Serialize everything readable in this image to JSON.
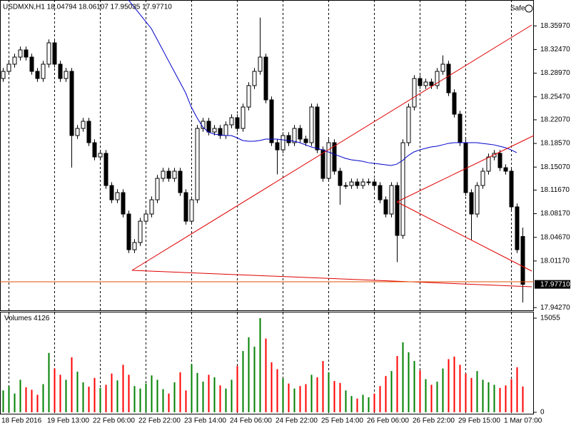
{
  "chart_data": {
    "type": "candlestick",
    "title": "USDMXN,H1  18.04794 18.06107 17.95035 17.97710",
    "safe_label": "Safe",
    "categories": [
      null,
      "18 Feb 2016",
      null,
      null,
      null,
      null,
      null,
      null,
      null,
      "19 Feb 13:00",
      null,
      null,
      null,
      null,
      null,
      null,
      null,
      "22 Feb 06:00",
      null,
      null,
      null,
      null,
      null,
      null,
      null,
      "22 Feb 22:00",
      null,
      null,
      null,
      null,
      null,
      null,
      null,
      "23 Feb 14:00",
      null,
      null,
      null,
      null,
      null,
      null,
      null,
      "24 Feb 06:00",
      null,
      null,
      null,
      null,
      null,
      null,
      null,
      "24 Feb 22:00",
      null,
      null,
      null,
      null,
      null,
      null,
      null,
      "25 Feb 14:00",
      null,
      null,
      null,
      null,
      null,
      null,
      null,
      "26 Feb 06:00",
      null,
      null,
      null,
      null,
      null,
      null,
      null,
      "26 Feb 22:00",
      null,
      null,
      null,
      null,
      null,
      null,
      null,
      "29 Feb 15:00",
      null,
      null,
      null,
      null,
      null,
      null,
      null,
      "1 Mar 07:00",
      null,
      null
    ],
    "open": [
      18.2818,
      18.2924,
      18.303,
      18.3135,
      18.3241,
      18.3135,
      18.2924,
      18.2818,
      18.303,
      18.3346,
      18.303,
      18.2818,
      18.2924,
      18.1974,
      18.2079,
      18.2185,
      18.1868,
      18.1657,
      18.171,
      18.1234,
      18.1023,
      18.1129,
      18.0812,
      18.0284,
      18.039,
      18.0706,
      18.0812,
      18.1023,
      18.134,
      18.1446,
      18.134,
      18.1446,
      18.1129,
      18.0706,
      18.1023,
      18.2079,
      18.2185,
      18.2026,
      18.2079,
      18.1974,
      18.2132,
      18.2238,
      18.2079,
      18.2396,
      18.2713,
      18.2924,
      18.3135,
      18.2502,
      18.1868,
      18.1762,
      18.1974,
      18.1868,
      18.2079,
      18.1921,
      18.1868,
      18.2396,
      18.1762,
      18.134,
      18.1868,
      18.1446,
      18.1234,
      18.1234,
      18.1287,
      18.1234,
      18.1287,
      18.1287,
      18.1234,
      18.1023,
      18.0812,
      18.1234,
      18.0495,
      18.1868,
      18.2396,
      18.2818,
      18.2713,
      18.2766,
      18.2713,
      18.2924,
      18.303,
      18.2607,
      18.229,
      18.1868,
      18.1129,
      18.0812,
      18.1234,
      18.1446,
      18.1657,
      18.171,
      18.1498,
      18.1446,
      18.0918,
      18.04794
    ],
    "high": [
      18.2974,
      18.308,
      18.3185,
      18.3291,
      18.3291,
      18.3185,
      18.2974,
      18.308,
      18.3396,
      18.3396,
      18.308,
      18.2974,
      18.2974,
      18.2129,
      18.2235,
      18.2235,
      18.1918,
      18.176,
      18.176,
      18.1284,
      18.1179,
      18.1179,
      18.0862,
      18.044,
      18.0756,
      18.0862,
      18.1073,
      18.139,
      18.1496,
      18.1496,
      18.1496,
      18.1496,
      18.1179,
      18.1073,
      18.2129,
      18.2235,
      18.2235,
      18.2129,
      18.2129,
      18.2182,
      18.2288,
      18.2288,
      18.2446,
      18.2763,
      18.2974,
      18.372,
      18.3185,
      18.2552,
      18.1918,
      18.2024,
      18.2024,
      18.2129,
      18.2129,
      18.1971,
      18.2446,
      18.2446,
      18.1812,
      18.1918,
      18.1918,
      18.1496,
      18.1284,
      18.1337,
      18.1337,
      18.1337,
      18.1337,
      18.1337,
      18.1284,
      18.1073,
      18.1284,
      18.1284,
      18.1918,
      18.2446,
      18.2868,
      18.2868,
      18.2816,
      18.2816,
      18.2974,
      18.316,
      18.308,
      18.2657,
      18.234,
      18.1918,
      18.1179,
      18.1284,
      18.1496,
      18.1707,
      18.176,
      18.176,
      18.1548,
      18.1496,
      18.0968,
      18.06107
    ],
    "low": [
      18.2768,
      18.2874,
      18.298,
      18.3085,
      18.3085,
      18.2874,
      18.2768,
      18.2768,
      18.298,
      18.298,
      18.2768,
      18.2768,
      18.15,
      18.1924,
      18.2029,
      18.1818,
      18.1607,
      18.1607,
      18.1184,
      18.0973,
      18.0973,
      18.0762,
      18.0234,
      18.0234,
      18.034,
      18.0656,
      18.0762,
      18.0973,
      18.129,
      18.129,
      18.129,
      18.1079,
      18.0656,
      18.0656,
      18.0973,
      18.2029,
      18.1976,
      18.1976,
      18.1924,
      18.1924,
      18.2082,
      18.2029,
      18.2029,
      18.2346,
      18.2663,
      18.2874,
      18.2452,
      18.1818,
      18.14,
      18.1712,
      18.1818,
      18.1818,
      18.1871,
      18.1818,
      18.1818,
      18.1712,
      18.129,
      18.129,
      18.1396,
      18.095,
      18.1184,
      18.1184,
      18.1184,
      18.1184,
      18.1237,
      18.1184,
      18.0973,
      18.0762,
      18.0762,
      18.01,
      18.0445,
      18.1818,
      18.2346,
      18.2663,
      18.2663,
      18.2663,
      18.2663,
      18.2874,
      18.2557,
      18.224,
      18.1818,
      18.1079,
      18.043,
      18.0762,
      18.1184,
      18.1396,
      18.1607,
      18.1448,
      18.1396,
      18.0868,
      18.0234,
      17.95035
    ],
    "close": [
      18.2924,
      18.303,
      18.3135,
      18.3241,
      18.3135,
      18.2924,
      18.2818,
      18.303,
      18.3346,
      18.303,
      18.2818,
      18.2924,
      18.1974,
      18.2079,
      18.2185,
      18.1868,
      18.1657,
      18.171,
      18.1234,
      18.1023,
      18.1129,
      18.0812,
      18.0284,
      18.039,
      18.0706,
      18.0812,
      18.1023,
      18.134,
      18.1446,
      18.134,
      18.1446,
      18.1129,
      18.0706,
      18.1023,
      18.2079,
      18.2185,
      18.2026,
      18.2079,
      18.1974,
      18.2132,
      18.2238,
      18.2079,
      18.2396,
      18.2713,
      18.2924,
      18.3135,
      18.2502,
      18.1868,
      18.1762,
      18.1974,
      18.1868,
      18.2079,
      18.1921,
      18.1868,
      18.2396,
      18.1762,
      18.134,
      18.1868,
      18.1446,
      18.1234,
      18.1234,
      18.1287,
      18.1234,
      18.1287,
      18.1287,
      18.1234,
      18.1023,
      18.0812,
      18.1234,
      18.0495,
      18.1868,
      18.2396,
      18.2818,
      18.2713,
      18.2766,
      18.2713,
      18.2924,
      18.303,
      18.2607,
      18.229,
      18.1868,
      18.1129,
      18.0812,
      18.1234,
      18.1446,
      18.1657,
      18.171,
      18.1498,
      18.1446,
      18.0918,
      18.0284,
      17.9771
    ],
    "ylim": [
      17.9387,
      18.398
    ],
    "yticks": [
      {
        "value": 18.3597,
        "label": "18.35970"
      },
      {
        "value": 18.3247,
        "label": "18.32470"
      },
      {
        "value": 18.2897,
        "label": "18.28970"
      },
      {
        "value": 18.2547,
        "label": "18.25470"
      },
      {
        "value": 18.2207,
        "label": "18.22070"
      },
      {
        "value": 18.1857,
        "label": "18.18570"
      },
      {
        "value": 18.1507,
        "label": "18.15070"
      },
      {
        "value": 18.1167,
        "label": "18.11670"
      },
      {
        "value": 18.0817,
        "label": "18.08170"
      },
      {
        "value": 18.0467,
        "label": "18.04670"
      },
      {
        "value": 18.0117,
        "label": "18.01170"
      },
      {
        "value": 17.9427,
        "label": "17.94270"
      }
    ],
    "current_price": {
      "value": 17.9771,
      "label": "17.97710"
    },
    "up_color": "#ffffff",
    "down_color": "#000000",
    "moving_average": {
      "color": "#0000cc",
      "values": [
        null,
        null,
        null,
        null,
        null,
        null,
        null,
        null,
        null,
        null,
        null,
        null,
        null,
        null,
        null,
        null,
        null,
        null,
        null,
        null,
        null,
        null,
        18.398,
        18.3874,
        18.3769,
        18.3663,
        18.3558,
        18.3399,
        18.3241,
        18.3082,
        18.2924,
        18.2766,
        18.2607,
        18.2396,
        18.2238,
        18.21,
        18.2026,
        18.1995,
        18.1984,
        18.1974,
        18.1974,
        18.1942,
        18.19,
        18.1889,
        18.1889,
        18.19,
        18.1921,
        18.1921,
        18.1921,
        18.191,
        18.19,
        18.1889,
        18.1868,
        18.1836,
        18.1805,
        18.1784,
        18.1762,
        18.1731,
        18.1699,
        18.1667,
        18.1636,
        18.1615,
        18.1604,
        18.1593,
        18.1572,
        18.1562,
        18.1551,
        18.1541,
        18.153,
        18.1551,
        18.1604,
        18.1678,
        18.1731,
        18.1762,
        18.1784,
        18.1805,
        18.1815,
        18.1836,
        18.1857,
        18.1868,
        18.1868,
        18.1868,
        18.1868,
        18.1868,
        18.1857,
        18.1847,
        18.1836,
        18.1815,
        18.1794,
        18.1762,
        18.172,
        null
      ]
    },
    "volume": {
      "label": "Volumes",
      "up_color": "#008000",
      "down_color": "#ff0000",
      "ylim": [
        0,
        15055
      ],
      "yticks": [
        0,
        15055
      ],
      "values": [
        3500,
        4200,
        3000,
        5200,
        4000,
        3600,
        2800,
        4500,
        9500,
        7000,
        6000,
        5200,
        8800,
        6500,
        4800,
        4100,
        5500,
        3900,
        4400,
        6200,
        5100,
        7600,
        6000,
        4200,
        3800,
        4600,
        5900,
        5200,
        3700,
        3000,
        4800,
        6400,
        3500,
        7700,
        6300,
        4900,
        6000,
        5600,
        4300,
        3800,
        5200,
        7400,
        9800,
        12000,
        10500,
        15055,
        11800,
        8000,
        6900,
        5400,
        4600,
        3800,
        4200,
        4500,
        6000,
        5600,
        8200,
        6400,
        5000,
        4700,
        3500,
        2600,
        2200,
        2800,
        2400,
        3000,
        4200,
        5800,
        6600,
        9000,
        11200,
        9600,
        8200,
        6700,
        5300,
        4400,
        4900,
        7000,
        8500,
        8900,
        7600,
        6200,
        5500,
        6600,
        5200,
        4800,
        4400,
        3900,
        4300,
        5300,
        7200,
        4126
      ]
    }
  }
}
